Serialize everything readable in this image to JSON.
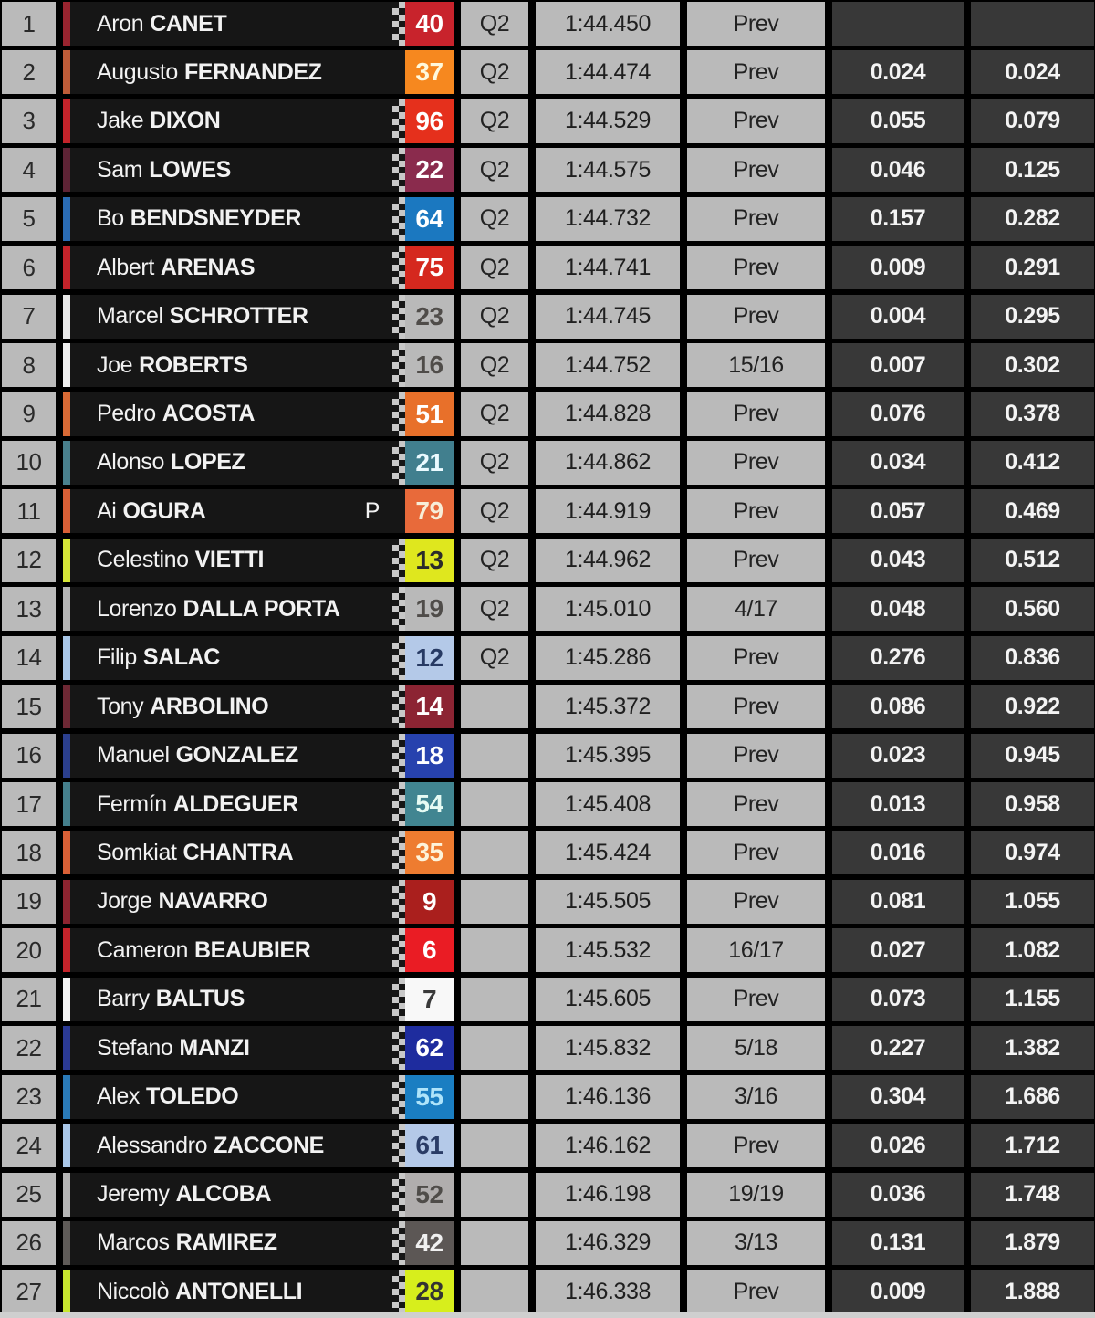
{
  "table": {
    "columns": [
      "position",
      "rider",
      "number",
      "session",
      "time",
      "lap",
      "gap_previous",
      "gap_first"
    ],
    "colors": {
      "background": "#000000",
      "light_cell": "#bababa",
      "dark_cell": "#383838",
      "name_cell": "#161616",
      "light_cell_text": "#222222",
      "dark_cell_text": "#f4f4f4",
      "checker_light": "#c8c8c8",
      "footer_strip": "#cfcfcf"
    },
    "rows": [
      {
        "pos": "1",
        "first": "Aron",
        "last": "CANET",
        "flag": "",
        "num": "40",
        "num_bg": "#c8232c",
        "num_fg": "#ffffff",
        "stripe": "#99242f",
        "checker": true,
        "session": "Q2",
        "time": "1:44.450",
        "lap": "Prev",
        "gap_prev": "",
        "gap_first": ""
      },
      {
        "pos": "2",
        "first": "Augusto",
        "last": "FERNANDEZ",
        "flag": "",
        "num": "37",
        "num_bg": "#f6881f",
        "num_fg": "#fff9dc",
        "stripe": "#bf5c38",
        "checker": false,
        "session": "Q2",
        "time": "1:44.474",
        "lap": "Prev",
        "gap_prev": "0.024",
        "gap_first": "0.024"
      },
      {
        "pos": "3",
        "first": "Jake",
        "last": "DIXON",
        "flag": "",
        "num": "96",
        "num_bg": "#e5301c",
        "num_fg": "#ffffff",
        "stripe": "#c4232a",
        "checker": true,
        "session": "Q2",
        "time": "1:44.529",
        "lap": "Prev",
        "gap_prev": "0.055",
        "gap_first": "0.079"
      },
      {
        "pos": "4",
        "first": "Sam",
        "last": "LOWES",
        "flag": "",
        "num": "22",
        "num_bg": "#8a2b4d",
        "num_fg": "#ffffff",
        "stripe": "#5e2335",
        "checker": true,
        "session": "Q2",
        "time": "1:44.575",
        "lap": "Prev",
        "gap_prev": "0.046",
        "gap_first": "0.125"
      },
      {
        "pos": "5",
        "first": "Bo",
        "last": "BENDSNEYDER",
        "flag": "",
        "num": "64",
        "num_bg": "#1b78c0",
        "num_fg": "#ffffff",
        "stripe": "#2a6cb5",
        "checker": true,
        "session": "Q2",
        "time": "1:44.732",
        "lap": "Prev",
        "gap_prev": "0.157",
        "gap_first": "0.282"
      },
      {
        "pos": "6",
        "first": "Albert",
        "last": "ARENAS",
        "flag": "",
        "num": "75",
        "num_bg": "#d5281e",
        "num_fg": "#ffffff",
        "stripe": "#c4232a",
        "checker": true,
        "session": "Q2",
        "time": "1:44.741",
        "lap": "Prev",
        "gap_prev": "0.009",
        "gap_first": "0.291"
      },
      {
        "pos": "7",
        "first": "Marcel",
        "last": "SCHROTTER",
        "flag": "",
        "num": "23",
        "num_bg": "#b9b9b9",
        "num_fg": "#4f4c49",
        "stripe": "#e8e8e8",
        "checker": true,
        "session": "Q2",
        "time": "1:44.745",
        "lap": "Prev",
        "gap_prev": "0.004",
        "gap_first": "0.295"
      },
      {
        "pos": "8",
        "first": "Joe",
        "last": "ROBERTS",
        "flag": "",
        "num": "16",
        "num_bg": "#b9b9b9",
        "num_fg": "#4f4c49",
        "stripe": "#f0f0f0",
        "checker": true,
        "session": "Q2",
        "time": "1:44.752",
        "lap": "15/16",
        "gap_prev": "0.007",
        "gap_first": "0.302"
      },
      {
        "pos": "9",
        "first": "Pedro",
        "last": "ACOSTA",
        "flag": "",
        "num": "51",
        "num_bg": "#e8702a",
        "num_fg": "#ffffff",
        "stripe": "#d96a35",
        "checker": true,
        "session": "Q2",
        "time": "1:44.828",
        "lap": "Prev",
        "gap_prev": "0.076",
        "gap_first": "0.378"
      },
      {
        "pos": "10",
        "first": "Alonso",
        "last": "LOPEZ",
        "flag": "",
        "num": "21",
        "num_bg": "#417f8e",
        "num_fg": "#eafaff",
        "stripe": "#49808d",
        "checker": true,
        "session": "Q2",
        "time": "1:44.862",
        "lap": "Prev",
        "gap_prev": "0.034",
        "gap_first": "0.412"
      },
      {
        "pos": "11",
        "first": "Ai",
        "last": "OGURA",
        "flag": "P",
        "num": "79",
        "num_bg": "#e86a3a",
        "num_fg": "#f7eed8",
        "stripe": "#d95f36",
        "checker": false,
        "session": "Q2",
        "time": "1:44.919",
        "lap": "Prev",
        "gap_prev": "0.057",
        "gap_first": "0.469"
      },
      {
        "pos": "12",
        "first": "Celestino",
        "last": "VIETTI",
        "flag": "",
        "num": "13",
        "num_bg": "#dfe71e",
        "num_fg": "#2b2b2b",
        "stripe": "#d6e637",
        "checker": true,
        "session": "Q2",
        "time": "1:44.962",
        "lap": "Prev",
        "gap_prev": "0.043",
        "gap_first": "0.512"
      },
      {
        "pos": "13",
        "first": "Lorenzo",
        "last": "DALLA PORTA",
        "flag": "",
        "num": "19",
        "num_bg": "#b9b9b9",
        "num_fg": "#4f4c49",
        "stripe": "#b5b5b5",
        "checker": true,
        "session": "Q2",
        "time": "1:45.010",
        "lap": "4/17",
        "gap_prev": "0.048",
        "gap_first": "0.560"
      },
      {
        "pos": "14",
        "first": "Filip",
        "last": "SALAC",
        "flag": "",
        "num": "12",
        "num_bg": "#b4c9e8",
        "num_fg": "#273a63",
        "stripe": "#a9c7e8",
        "checker": true,
        "session": "Q2",
        "time": "1:45.286",
        "lap": "Prev",
        "gap_prev": "0.276",
        "gap_first": "0.836"
      },
      {
        "pos": "15",
        "first": "Tony",
        "last": "ARBOLINO",
        "flag": "",
        "num": "14",
        "num_bg": "#8c2433",
        "num_fg": "#ffffff",
        "stripe": "#6e2834",
        "checker": true,
        "session": "",
        "time": "1:45.372",
        "lap": "Prev",
        "gap_prev": "0.086",
        "gap_first": "0.922"
      },
      {
        "pos": "16",
        "first": "Manuel",
        "last": "GONZALEZ",
        "flag": "",
        "num": "18",
        "num_bg": "#2742ae",
        "num_fg": "#ffffff",
        "stripe": "#2b3f8e",
        "checker": true,
        "session": "",
        "time": "1:45.395",
        "lap": "Prev",
        "gap_prev": "0.023",
        "gap_first": "0.945"
      },
      {
        "pos": "17",
        "first": "Fermín",
        "last": "ALDEGUER",
        "flag": "",
        "num": "54",
        "num_bg": "#418591",
        "num_fg": "#e6fbf4",
        "stripe": "#45808d",
        "checker": true,
        "session": "",
        "time": "1:45.408",
        "lap": "Prev",
        "gap_prev": "0.013",
        "gap_first": "0.958"
      },
      {
        "pos": "18",
        "first": "Somkiat",
        "last": "CHANTRA",
        "flag": "",
        "num": "35",
        "num_bg": "#ee7c30",
        "num_fg": "#fdf3da",
        "stripe": "#d96036",
        "checker": true,
        "session": "",
        "time": "1:45.424",
        "lap": "Prev",
        "gap_prev": "0.016",
        "gap_first": "0.974"
      },
      {
        "pos": "19",
        "first": "Jorge",
        "last": "NAVARRO",
        "flag": "",
        "num": "9",
        "num_bg": "#aa1f1d",
        "num_fg": "#ffffff",
        "stripe": "#8e2430",
        "checker": true,
        "session": "",
        "time": "1:45.505",
        "lap": "Prev",
        "gap_prev": "0.081",
        "gap_first": "1.055"
      },
      {
        "pos": "20",
        "first": "Cameron",
        "last": "BEAUBIER",
        "flag": "",
        "num": "6",
        "num_bg": "#ea1c24",
        "num_fg": "#ffffff",
        "stripe": "#c4232a",
        "checker": true,
        "session": "",
        "time": "1:45.532",
        "lap": "16/17",
        "gap_prev": "0.027",
        "gap_first": "1.082"
      },
      {
        "pos": "21",
        "first": "Barry",
        "last": "BALTUS",
        "flag": "",
        "num": "7",
        "num_bg": "#f8f8f8",
        "num_fg": "#3a3a3a",
        "stripe": "#f2f2f2",
        "checker": true,
        "session": "",
        "time": "1:45.605",
        "lap": "Prev",
        "gap_prev": "0.073",
        "gap_first": "1.155"
      },
      {
        "pos": "22",
        "first": "Stefano",
        "last": "MANZI",
        "flag": "",
        "num": "62",
        "num_bg": "#1e2c9e",
        "num_fg": "#ffffff",
        "stripe": "#2b3a95",
        "checker": true,
        "session": "",
        "time": "1:45.832",
        "lap": "5/18",
        "gap_prev": "0.227",
        "gap_first": "1.382"
      },
      {
        "pos": "23",
        "first": "Alex",
        "last": "TOLEDO",
        "flag": "",
        "num": "55",
        "num_bg": "#1a7ec2",
        "num_fg": "#aee4fa",
        "stripe": "#2a7ab8",
        "checker": true,
        "session": "",
        "time": "1:46.136",
        "lap": "3/16",
        "gap_prev": "0.304",
        "gap_first": "1.686"
      },
      {
        "pos": "24",
        "first": "Alessandro",
        "last": "ZACCONE",
        "flag": "",
        "num": "61",
        "num_bg": "#b4c9e8",
        "num_fg": "#2a3c66",
        "stripe": "#a9c7e8",
        "checker": true,
        "session": "",
        "time": "1:46.162",
        "lap": "Prev",
        "gap_prev": "0.026",
        "gap_first": "1.712"
      },
      {
        "pos": "25",
        "first": "Jeremy",
        "last": "ALCOBA",
        "flag": "",
        "num": "52",
        "num_bg": "#b0adad",
        "num_fg": "#4f4c49",
        "stripe": "#b5b5b5",
        "checker": true,
        "session": "",
        "time": "1:46.198",
        "lap": "19/19",
        "gap_prev": "0.036",
        "gap_first": "1.748"
      },
      {
        "pos": "26",
        "first": "Marcos",
        "last": "RAMIREZ",
        "flag": "",
        "num": "42",
        "num_bg": "#5c5755",
        "num_fg": "#f0f0f0",
        "stripe": "#5f5b58",
        "checker": true,
        "session": "",
        "time": "1:46.329",
        "lap": "3/13",
        "gap_prev": "0.131",
        "gap_first": "1.879"
      },
      {
        "pos": "27",
        "first": "Niccolò",
        "last": "ANTONELLI",
        "flag": "",
        "num": "28",
        "num_bg": "#d7ee1c",
        "num_fg": "#333333",
        "stripe": "#c6e62e",
        "checker": true,
        "session": "",
        "time": "1:46.338",
        "lap": "Prev",
        "gap_prev": "0.009",
        "gap_first": "1.888"
      }
    ]
  }
}
